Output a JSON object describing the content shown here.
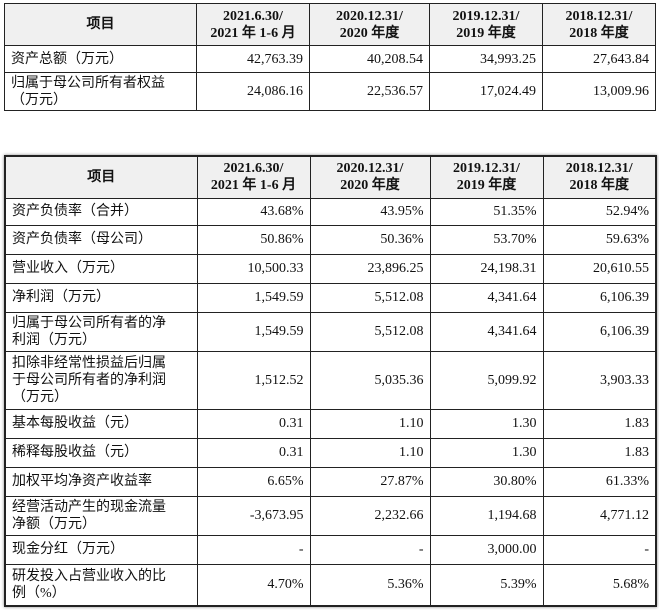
{
  "tables": [
    {
      "header": [
        "项目",
        "2021.6.30/\n2021 年 1-6 月",
        "2020.12.31/\n2020 年度",
        "2019.12.31/\n2019 年度",
        "2018.12.31/\n2018 年度"
      ],
      "rows": [
        [
          "资产总额（万元）",
          "42,763.39",
          "40,208.54",
          "34,993.25",
          "27,643.84"
        ],
        [
          "归属于母公司所有者权益\n（万元）",
          "24,086.16",
          "22,536.57",
          "17,024.49",
          "13,009.96"
        ]
      ]
    },
    {
      "header": [
        "项目",
        "2021.6.30/\n2021 年 1-6 月",
        "2020.12.31/\n2020 年度",
        "2019.12.31/\n2019 年度",
        "2018.12.31/\n2018 年度"
      ],
      "rows": [
        [
          "资产负债率（合并）",
          "43.68%",
          "43.95%",
          "51.35%",
          "52.94%"
        ],
        [
          "资产负债率（母公司）",
          "50.86%",
          "50.36%",
          "53.70%",
          "59.63%"
        ],
        [
          "营业收入（万元）",
          "10,500.33",
          "23,896.25",
          "24,198.31",
          "20,610.55"
        ],
        [
          "净利润（万元）",
          "1,549.59",
          "5,512.08",
          "4,341.64",
          "6,106.39"
        ],
        [
          "归属于母公司所有者的净\n利润（万元）",
          "1,549.59",
          "5,512.08",
          "4,341.64",
          "6,106.39"
        ],
        [
          "扣除非经常性损益后归属\n于母公司所有者的净利润\n（万元）",
          "1,512.52",
          "5,035.36",
          "5,099.92",
          "3,903.33"
        ],
        [
          "基本每股收益（元）",
          "0.31",
          "1.10",
          "1.30",
          "1.83"
        ],
        [
          "稀释每股收益（元）",
          "0.31",
          "1.10",
          "1.30",
          "1.83"
        ],
        [
          "加权平均净资产收益率",
          "6.65%",
          "27.87%",
          "30.80%",
          "61.33%"
        ],
        [
          "经营活动产生的现金流量\n净额（万元）",
          "-3,673.95",
          "2,232.66",
          "1,194.68",
          "4,771.12"
        ],
        [
          "现金分红（万元）",
          "-",
          "-",
          "3,000.00",
          "-"
        ],
        [
          "研发投入占营业收入的比\n例（%）",
          "4.70%",
          "5.36%",
          "5.39%",
          "5.68%"
        ]
      ]
    }
  ]
}
